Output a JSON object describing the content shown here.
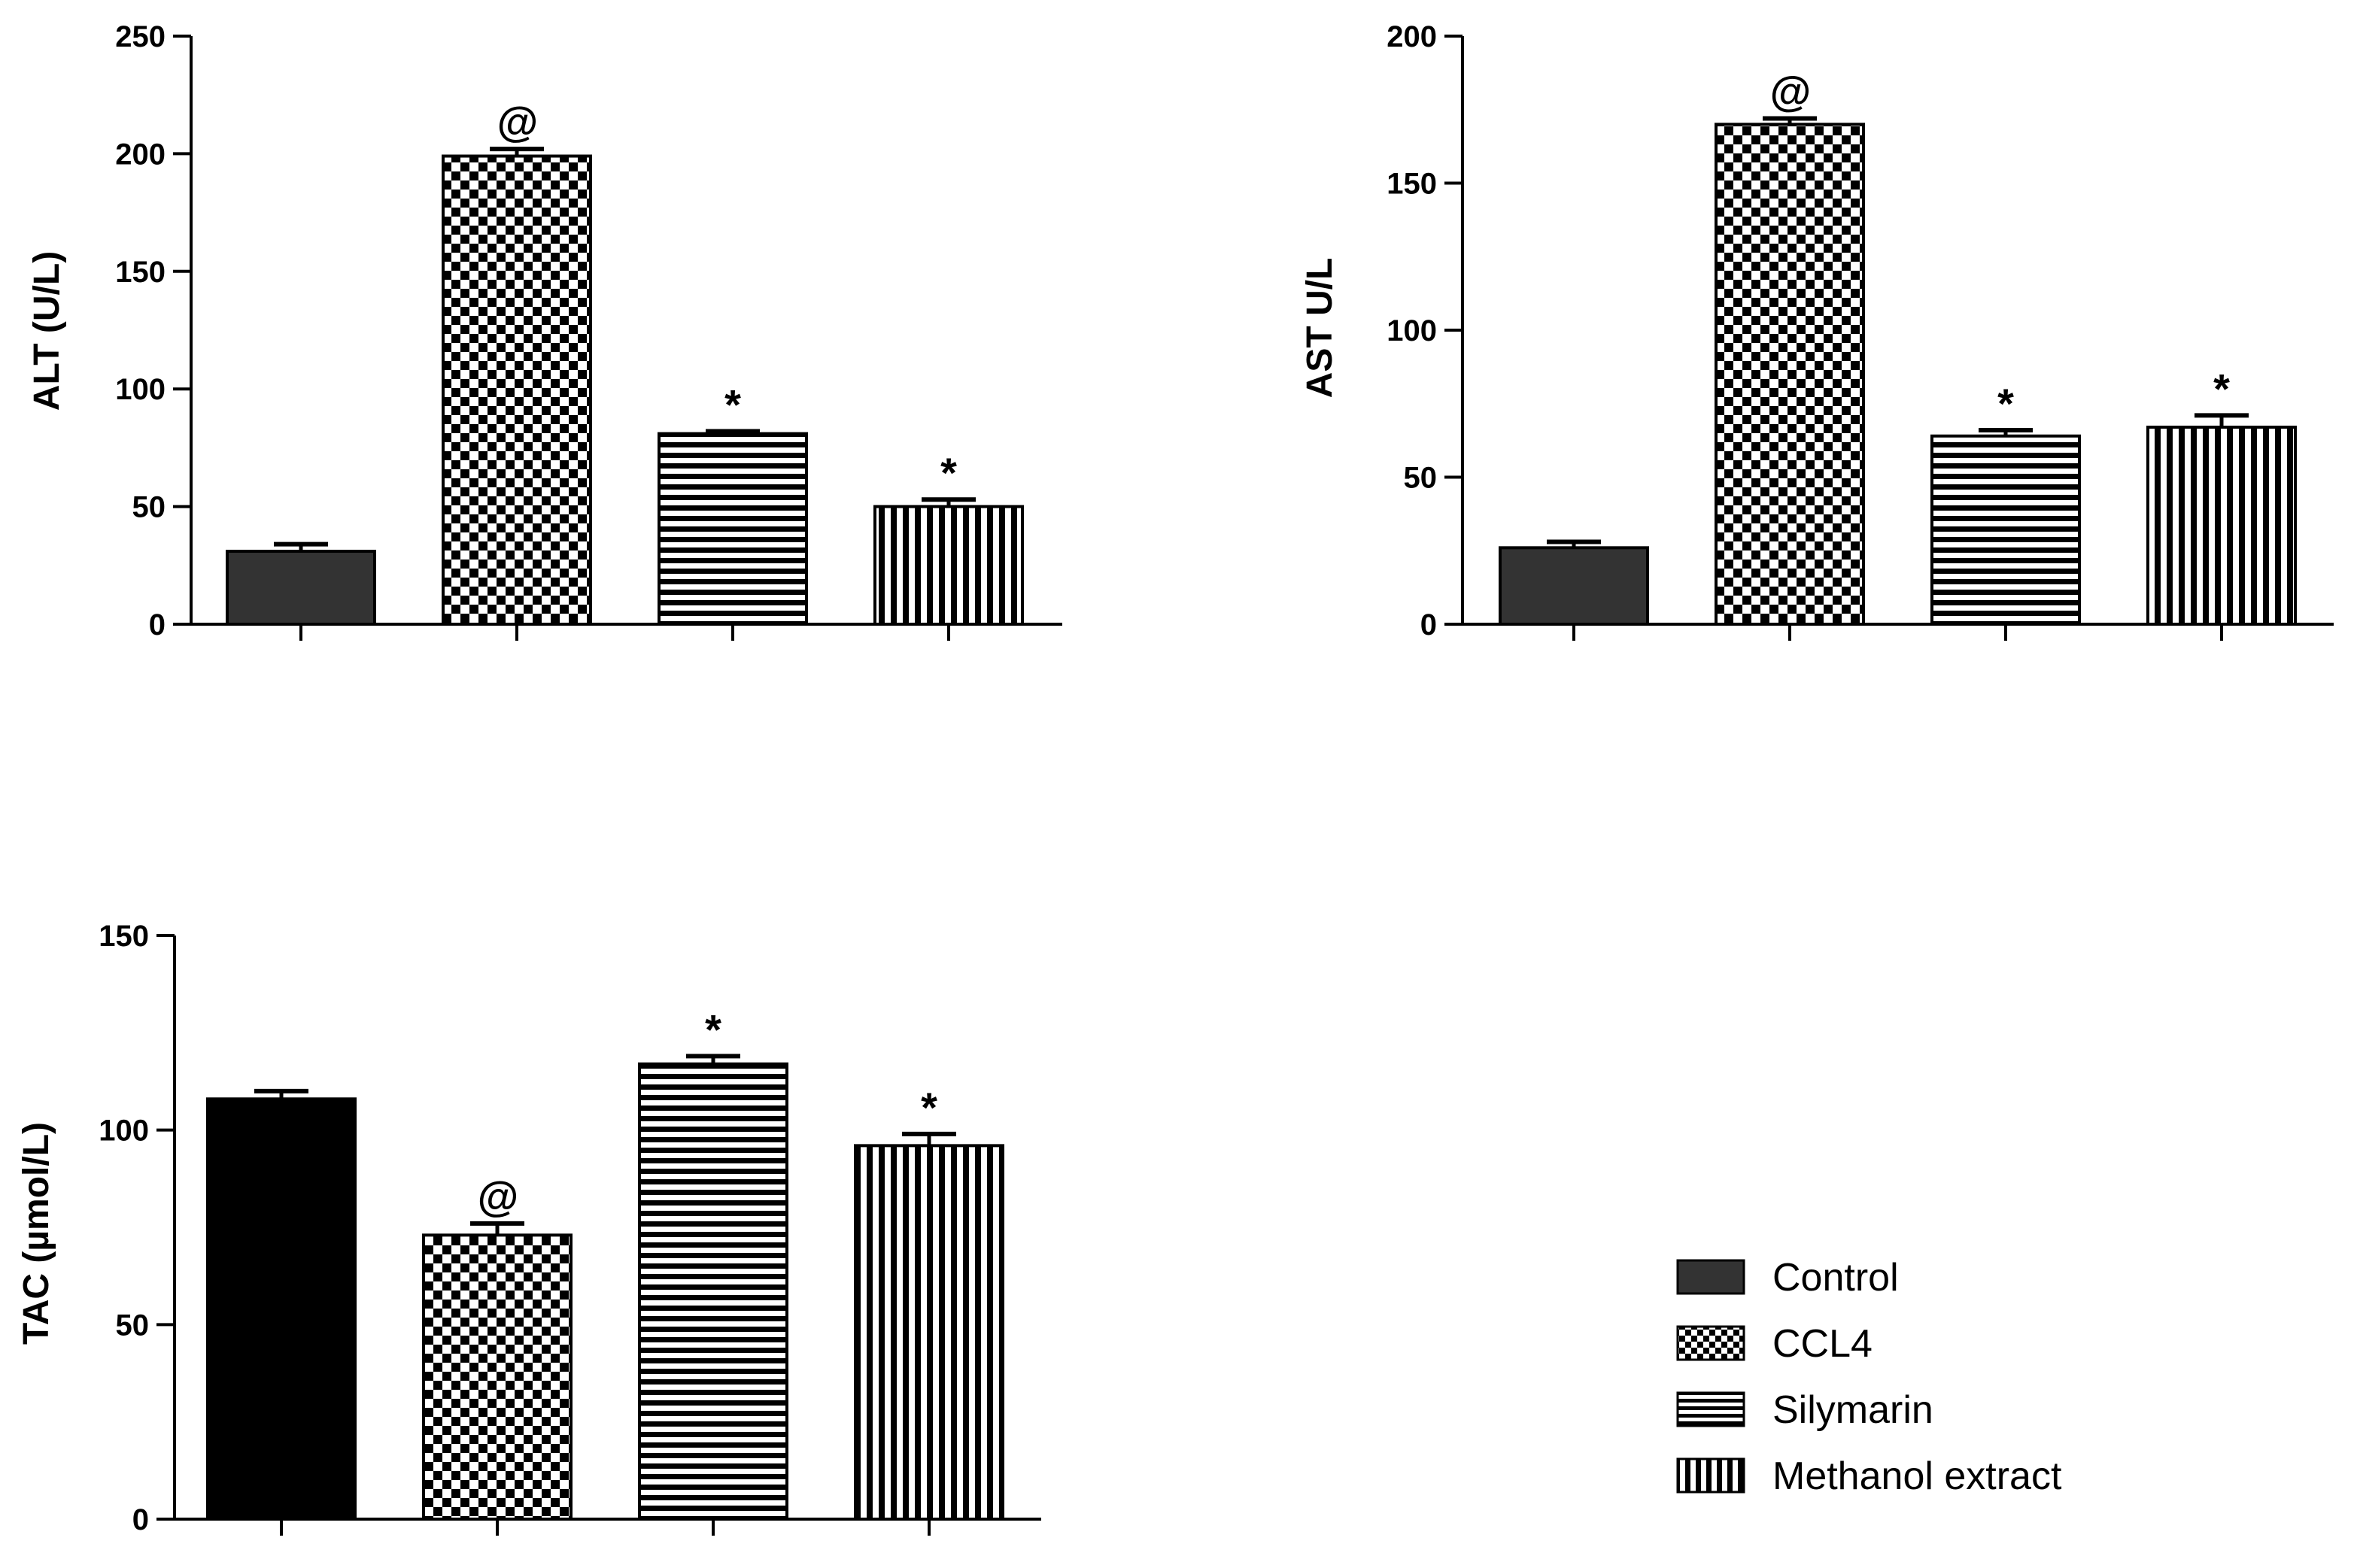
{
  "chart_data": [
    {
      "id": "alt",
      "type": "bar",
      "ylabel": "ALT (U/L)",
      "categories": [
        "Control",
        "CCL4",
        "Silymarin",
        "Methanol extract"
      ],
      "values": [
        31,
        199,
        81,
        50
      ],
      "errors": [
        3,
        3,
        1,
        3
      ],
      "annotations": [
        "",
        "@",
        "*",
        "*"
      ],
      "ylim": [
        0,
        250
      ],
      "yticks": [
        0,
        50,
        100,
        150,
        200,
        250
      ],
      "ytick_labels": [
        "0",
        "50",
        "100",
        "150",
        "200",
        "250"
      ]
    },
    {
      "id": "ast",
      "type": "bar",
      "ylabel": "AST U/L",
      "categories": [
        "Control",
        "CCL4",
        "Silymarin",
        "Methanol extract"
      ],
      "values": [
        26,
        170,
        64,
        67
      ],
      "errors": [
        2,
        2,
        2,
        4
      ],
      "annotations": [
        "",
        "@",
        "*",
        "*"
      ],
      "ylim": [
        0,
        200
      ],
      "yticks": [
        0,
        50,
        100,
        150,
        200
      ],
      "ytick_labels": [
        "0",
        "50",
        "100",
        "150",
        "200"
      ]
    },
    {
      "id": "tac",
      "type": "bar",
      "ylabel": "TAC (µmol/L)",
      "categories": [
        "Control",
        "CCL4",
        "Silymarin",
        "Methanol extract"
      ],
      "values": [
        108,
        73,
        117,
        96
      ],
      "errors": [
        2,
        3,
        2,
        3
      ],
      "annotations": [
        "",
        "@",
        "*",
        "*"
      ],
      "ylim": [
        0,
        150
      ],
      "yticks": [
        0,
        50,
        100,
        150
      ],
      "ytick_labels": [
        "0",
        "50",
        "100",
        "150"
      ]
    }
  ],
  "legend": {
    "placement": "bottom-right",
    "items": [
      {
        "label": "Control",
        "pattern": "solid"
      },
      {
        "label": "CCL4",
        "pattern": "checker"
      },
      {
        "label": "Silymarin",
        "pattern": "hstripe"
      },
      {
        "label": "Methanol extract",
        "pattern": "vstripe"
      }
    ]
  },
  "colors": {
    "control_fill": "#333333",
    "control_fill_tac": "#000000",
    "pattern_ink": "#000000",
    "background": "#ffffff"
  }
}
